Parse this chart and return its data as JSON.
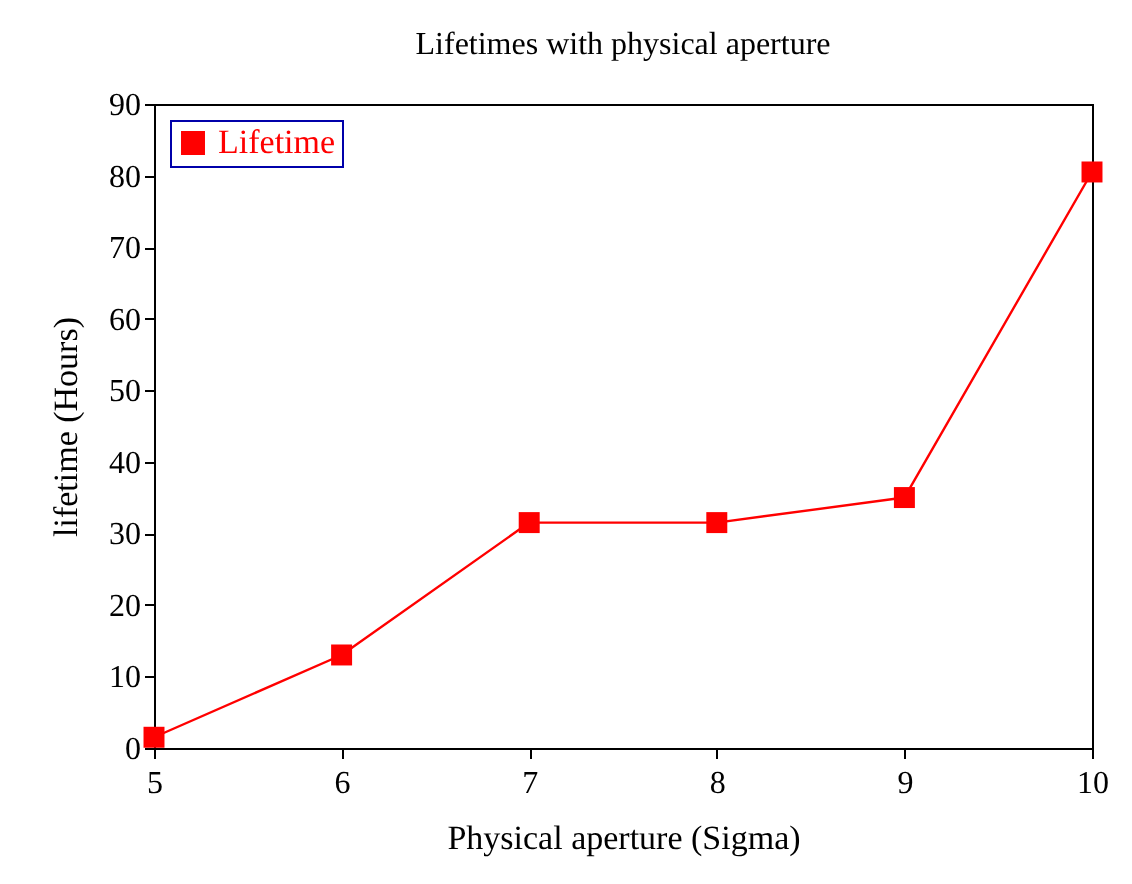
{
  "chart_data": {
    "type": "line",
    "title": "Lifetimes with physical aperture",
    "xlabel": "Physical aperture (Sigma)",
    "ylabel": "lifetime (Hours)",
    "x": [
      5,
      6,
      7,
      8,
      9,
      10
    ],
    "series": [
      {
        "name": "Lifetime",
        "color": "#ff0000",
        "values": [
          1.5,
          13,
          31.5,
          31.5,
          35,
          80.5
        ]
      }
    ],
    "xlim": [
      5,
      10
    ],
    "xticks": [
      5,
      6,
      7,
      8,
      9,
      10
    ],
    "ylim": [
      0,
      90
    ],
    "yticks": [
      0,
      10,
      20,
      30,
      40,
      50,
      60,
      70,
      80,
      90
    ],
    "legend": "top left",
    "marker": "square",
    "line_style": "solid",
    "grid": false
  }
}
